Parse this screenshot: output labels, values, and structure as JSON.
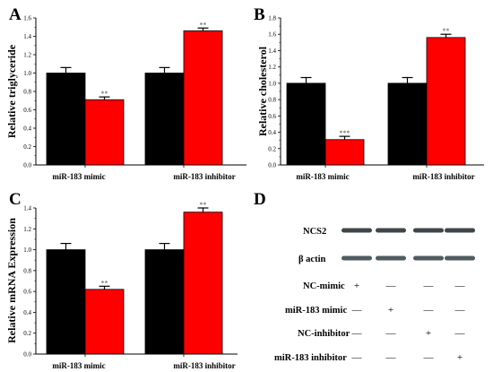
{
  "colors": {
    "control": "#000000",
    "treated": "#ff0000",
    "axis": "#000000",
    "error": "#000000"
  },
  "chart_data": [
    {
      "id": "A",
      "type": "bar",
      "panel_label": "A",
      "ylabel": "Relative triglyceride",
      "categories": [
        "miR-183 mimic",
        "miR-183 inhibitor"
      ],
      "series": [
        {
          "values": [
            1.0,
            1.0
          ],
          "errors": [
            0.06,
            0.06
          ]
        },
        {
          "values": [
            0.71,
            1.46
          ],
          "errors": [
            0.03,
            0.03
          ]
        }
      ],
      "significance": [
        [
          "",
          "**"
        ],
        [
          "",
          "**"
        ]
      ],
      "ylim": [
        0.0,
        1.6
      ],
      "yticks": [
        "0.0",
        "0.2",
        "0.4",
        "0.6",
        "0.8",
        "1.0",
        "1.2",
        "1.4",
        "1.6"
      ],
      "grid": false
    },
    {
      "id": "B",
      "type": "bar",
      "panel_label": "B",
      "ylabel": "Relative cholesterol",
      "categories": [
        "miR-183 mimic",
        "miR-183 inhibitor"
      ],
      "series": [
        {
          "values": [
            1.0,
            1.0
          ],
          "errors": [
            0.07,
            0.07
          ]
        },
        {
          "values": [
            0.31,
            1.56
          ],
          "errors": [
            0.04,
            0.04
          ]
        }
      ],
      "significance": [
        [
          "",
          "***"
        ],
        [
          "",
          "**"
        ]
      ],
      "ylim": [
        0.0,
        1.8
      ],
      "yticks": [
        "0.0",
        "0.2",
        "0.4",
        "0.6",
        "0.8",
        "1.0",
        "1.2",
        "1.4",
        "1.6",
        "1.8"
      ],
      "grid": false
    },
    {
      "id": "C",
      "type": "bar",
      "panel_label": "C",
      "ylabel": "Relative mRNA Expression",
      "categories": [
        "miR-183 mimic",
        "miR-183 inhibitor"
      ],
      "series": [
        {
          "values": [
            1.0,
            1.0
          ],
          "errors": [
            0.06,
            0.06
          ]
        },
        {
          "values": [
            0.62,
            1.36
          ],
          "errors": [
            0.03,
            0.04
          ]
        }
      ],
      "significance": [
        [
          "",
          "**"
        ],
        [
          "",
          "**"
        ]
      ],
      "ylim": [
        0.0,
        1.4
      ],
      "yticks": [
        "0.0",
        "0.2",
        "0.4",
        "0.6",
        "0.8",
        "1.0",
        "1.2",
        "1.4"
      ],
      "grid": false
    }
  ],
  "blot": {
    "panel_label": "D",
    "band_rows": [
      "NCS2",
      "β actin"
    ],
    "condition_rows": [
      {
        "label": "NC-mimic",
        "marks": [
          "+",
          "—",
          "—",
          "—"
        ]
      },
      {
        "label": "miR-183 mimic",
        "marks": [
          "—",
          "+",
          "—",
          "—"
        ]
      },
      {
        "label": "NC-inhibitor",
        "marks": [
          "—",
          "—",
          "+",
          "—"
        ]
      },
      {
        "label": "miR-183 inhibitor",
        "marks": [
          "—",
          "—",
          "—",
          "+"
        ]
      }
    ]
  }
}
